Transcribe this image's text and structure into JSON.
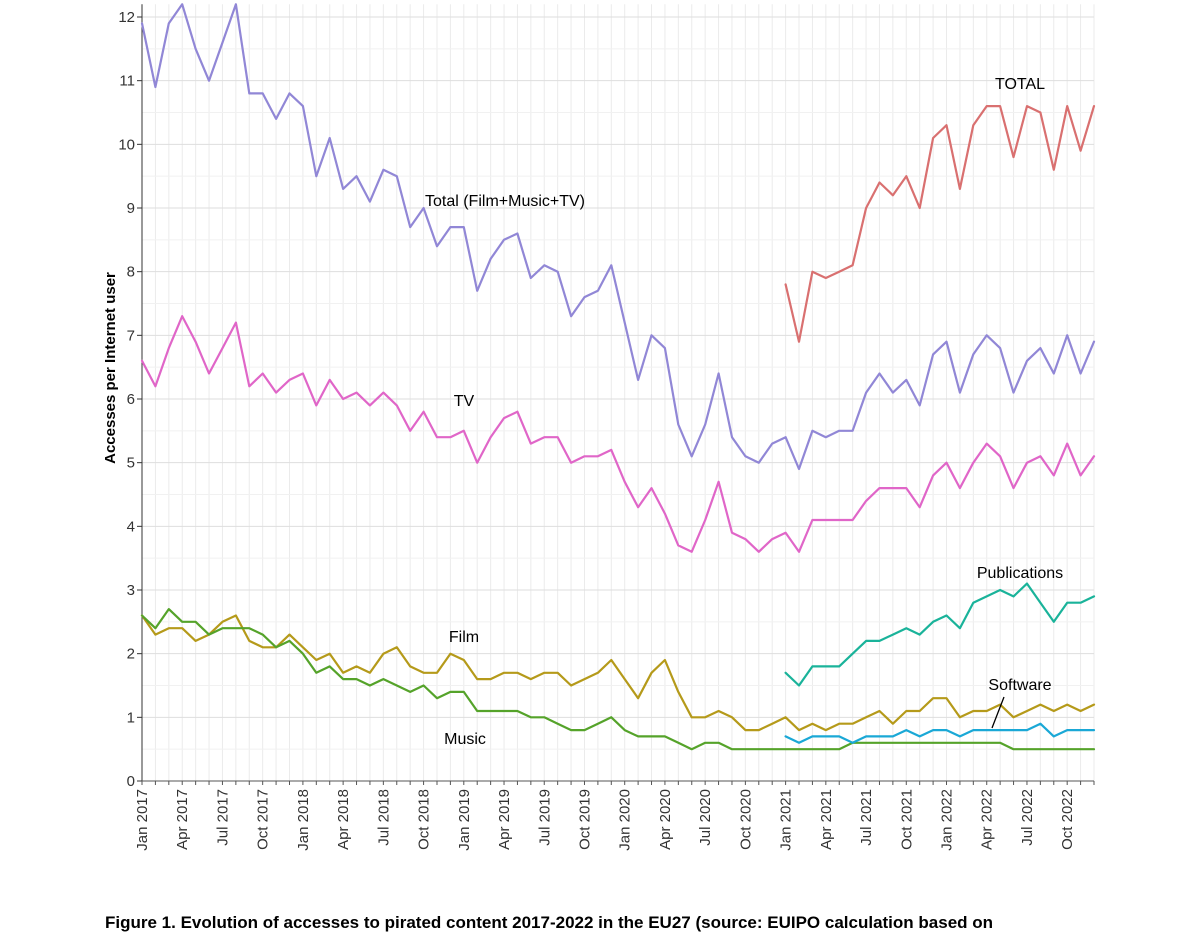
{
  "caption": "Figure 1. Evolution of accesses to pirated content 2017-2022 in the EU27 (source: EUIPO calculation based on",
  "chart_data": {
    "type": "line",
    "title": "",
    "xlabel": "",
    "ylabel": "Accesses per Internet user",
    "ylim": [
      0,
      12.2
    ],
    "yticks": [
      0,
      1,
      2,
      3,
      4,
      5,
      6,
      7,
      8,
      9,
      10,
      11,
      12
    ],
    "x_start": "Jan 2017",
    "months": 72,
    "xtick_labels": [
      "Jan 2017",
      "Apr 2017",
      "Jul 2017",
      "Oct 2017",
      "Jan 2018",
      "Apr 2018",
      "Jul 2018",
      "Oct 2018",
      "Jan 2019",
      "Apr 2019",
      "Jul 2019",
      "Oct 2019",
      "Jan 2020",
      "Apr 2020",
      "Jul 2020",
      "Oct 2020",
      "Jan 2021",
      "Apr 2021",
      "Jul 2021",
      "Oct 2021",
      "Jan 2022",
      "Apr 2022",
      "Jul 2022",
      "Oct 2022"
    ],
    "grid": true,
    "series": [
      {
        "name": "Total (Film+Music+TV)",
        "color": "#9187d6",
        "start_index": 0,
        "values": [
          11.9,
          10.9,
          11.9,
          12.2,
          11.5,
          11.0,
          11.6,
          12.2,
          10.8,
          10.8,
          10.4,
          10.8,
          10.6,
          9.5,
          10.1,
          9.3,
          9.5,
          9.1,
          9.6,
          9.5,
          8.7,
          9.0,
          8.4,
          8.7,
          8.7,
          7.7,
          8.2,
          8.5,
          8.6,
          7.9,
          8.1,
          8.0,
          7.3,
          7.6,
          7.7,
          8.1,
          7.2,
          6.3,
          7.0,
          6.8,
          5.6,
          5.1,
          5.6,
          6.4,
          5.4,
          5.1,
          5.0,
          5.3,
          5.4,
          4.9,
          5.5,
          5.4,
          5.5,
          5.5,
          6.1,
          6.4,
          6.1,
          6.3,
          5.9,
          6.7,
          6.9,
          6.1,
          6.7,
          7.0,
          6.8,
          6.1,
          6.6,
          6.8,
          6.4,
          7.0,
          6.4,
          6.9
        ]
      },
      {
        "name": "TV",
        "color": "#e066c8",
        "start_index": 0,
        "values": [
          6.6,
          6.2,
          6.8,
          7.3,
          6.9,
          6.4,
          6.8,
          7.2,
          6.2,
          6.4,
          6.1,
          6.3,
          6.4,
          5.9,
          6.3,
          6.0,
          6.1,
          5.9,
          6.1,
          5.9,
          5.5,
          5.8,
          5.4,
          5.4,
          5.5,
          5.0,
          5.4,
          5.7,
          5.8,
          5.3,
          5.4,
          5.4,
          5.0,
          5.1,
          5.1,
          5.2,
          4.7,
          4.3,
          4.6,
          4.2,
          3.7,
          3.6,
          4.1,
          4.7,
          3.9,
          3.8,
          3.6,
          3.8,
          3.9,
          3.6,
          4.1,
          4.1,
          4.1,
          4.1,
          4.4,
          4.6,
          4.6,
          4.6,
          4.3,
          4.8,
          5.0,
          4.6,
          5.0,
          5.3,
          5.1,
          4.6,
          5.0,
          5.1,
          4.8,
          5.3,
          4.8,
          5.1
        ]
      },
      {
        "name": "Film",
        "color": "#b59a1a",
        "start_index": 0,
        "values": [
          2.6,
          2.3,
          2.4,
          2.4,
          2.2,
          2.3,
          2.5,
          2.6,
          2.2,
          2.1,
          2.1,
          2.3,
          2.1,
          1.9,
          2.0,
          1.7,
          1.8,
          1.7,
          2.0,
          2.1,
          1.8,
          1.7,
          1.7,
          2.0,
          1.9,
          1.6,
          1.6,
          1.7,
          1.7,
          1.6,
          1.7,
          1.7,
          1.5,
          1.6,
          1.7,
          1.9,
          1.6,
          1.3,
          1.7,
          1.9,
          1.4,
          1.0,
          1.0,
          1.1,
          1.0,
          0.8,
          0.8,
          0.9,
          1.0,
          0.8,
          0.9,
          0.8,
          0.9,
          0.9,
          1.0,
          1.1,
          0.9,
          1.1,
          1.1,
          1.3,
          1.3,
          1.0,
          1.1,
          1.1,
          1.2,
          1.0,
          1.1,
          1.2,
          1.1,
          1.2,
          1.1,
          1.2
        ]
      },
      {
        "name": "Music",
        "color": "#55a32a",
        "start_index": 0,
        "values": [
          2.6,
          2.4,
          2.7,
          2.5,
          2.5,
          2.3,
          2.4,
          2.4,
          2.4,
          2.3,
          2.1,
          2.2,
          2.0,
          1.7,
          1.8,
          1.6,
          1.6,
          1.5,
          1.6,
          1.5,
          1.4,
          1.5,
          1.3,
          1.4,
          1.4,
          1.1,
          1.1,
          1.1,
          1.1,
          1.0,
          1.0,
          0.9,
          0.8,
          0.8,
          0.9,
          1.0,
          0.8,
          0.7,
          0.7,
          0.7,
          0.6,
          0.5,
          0.6,
          0.6,
          0.5,
          0.5,
          0.5,
          0.5,
          0.5,
          0.5,
          0.5,
          0.5,
          0.5,
          0.6,
          0.6,
          0.6,
          0.6,
          0.6,
          0.6,
          0.6,
          0.6,
          0.6,
          0.6,
          0.6,
          0.6,
          0.5,
          0.5,
          0.5,
          0.5,
          0.5,
          0.5,
          0.5
        ]
      },
      {
        "name": "TOTAL",
        "color": "#d97070",
        "start_index": 48,
        "values": [
          7.8,
          6.9,
          8.0,
          7.9,
          8.0,
          8.1,
          9.0,
          9.4,
          9.2,
          9.5,
          9.0,
          10.1,
          10.3,
          9.3,
          10.3,
          10.6,
          10.6,
          9.8,
          10.6,
          10.5,
          9.6,
          10.6,
          9.9,
          10.6
        ]
      },
      {
        "name": "Publications",
        "color": "#1ab39a",
        "start_index": 48,
        "values": [
          1.7,
          1.5,
          1.8,
          1.8,
          1.8,
          2.0,
          2.2,
          2.2,
          2.3,
          2.4,
          2.3,
          2.5,
          2.6,
          2.4,
          2.8,
          2.9,
          3.0,
          2.9,
          3.1,
          2.8,
          2.5,
          2.8,
          2.8,
          2.9
        ]
      },
      {
        "name": "Software",
        "color": "#1aa8d6",
        "start_index": 48,
        "values": [
          0.7,
          0.6,
          0.7,
          0.7,
          0.7,
          0.6,
          0.7,
          0.7,
          0.7,
          0.8,
          0.7,
          0.8,
          0.8,
          0.7,
          0.8,
          0.8,
          0.8,
          0.8,
          0.8,
          0.9,
          0.7,
          0.8,
          0.8,
          0.8
        ]
      }
    ],
    "annotations": [
      {
        "text": "TOTAL",
        "series": "TOTAL"
      },
      {
        "text": "Total (Film+Music+TV)",
        "series": "Total (Film+Music+TV)"
      },
      {
        "text": "TV",
        "series": "TV"
      },
      {
        "text": "Publications",
        "series": "Publications"
      },
      {
        "text": "Film",
        "series": "Film"
      },
      {
        "text": "Software",
        "series": "Software",
        "pointer": true
      },
      {
        "text": "Music",
        "series": "Music"
      }
    ]
  }
}
